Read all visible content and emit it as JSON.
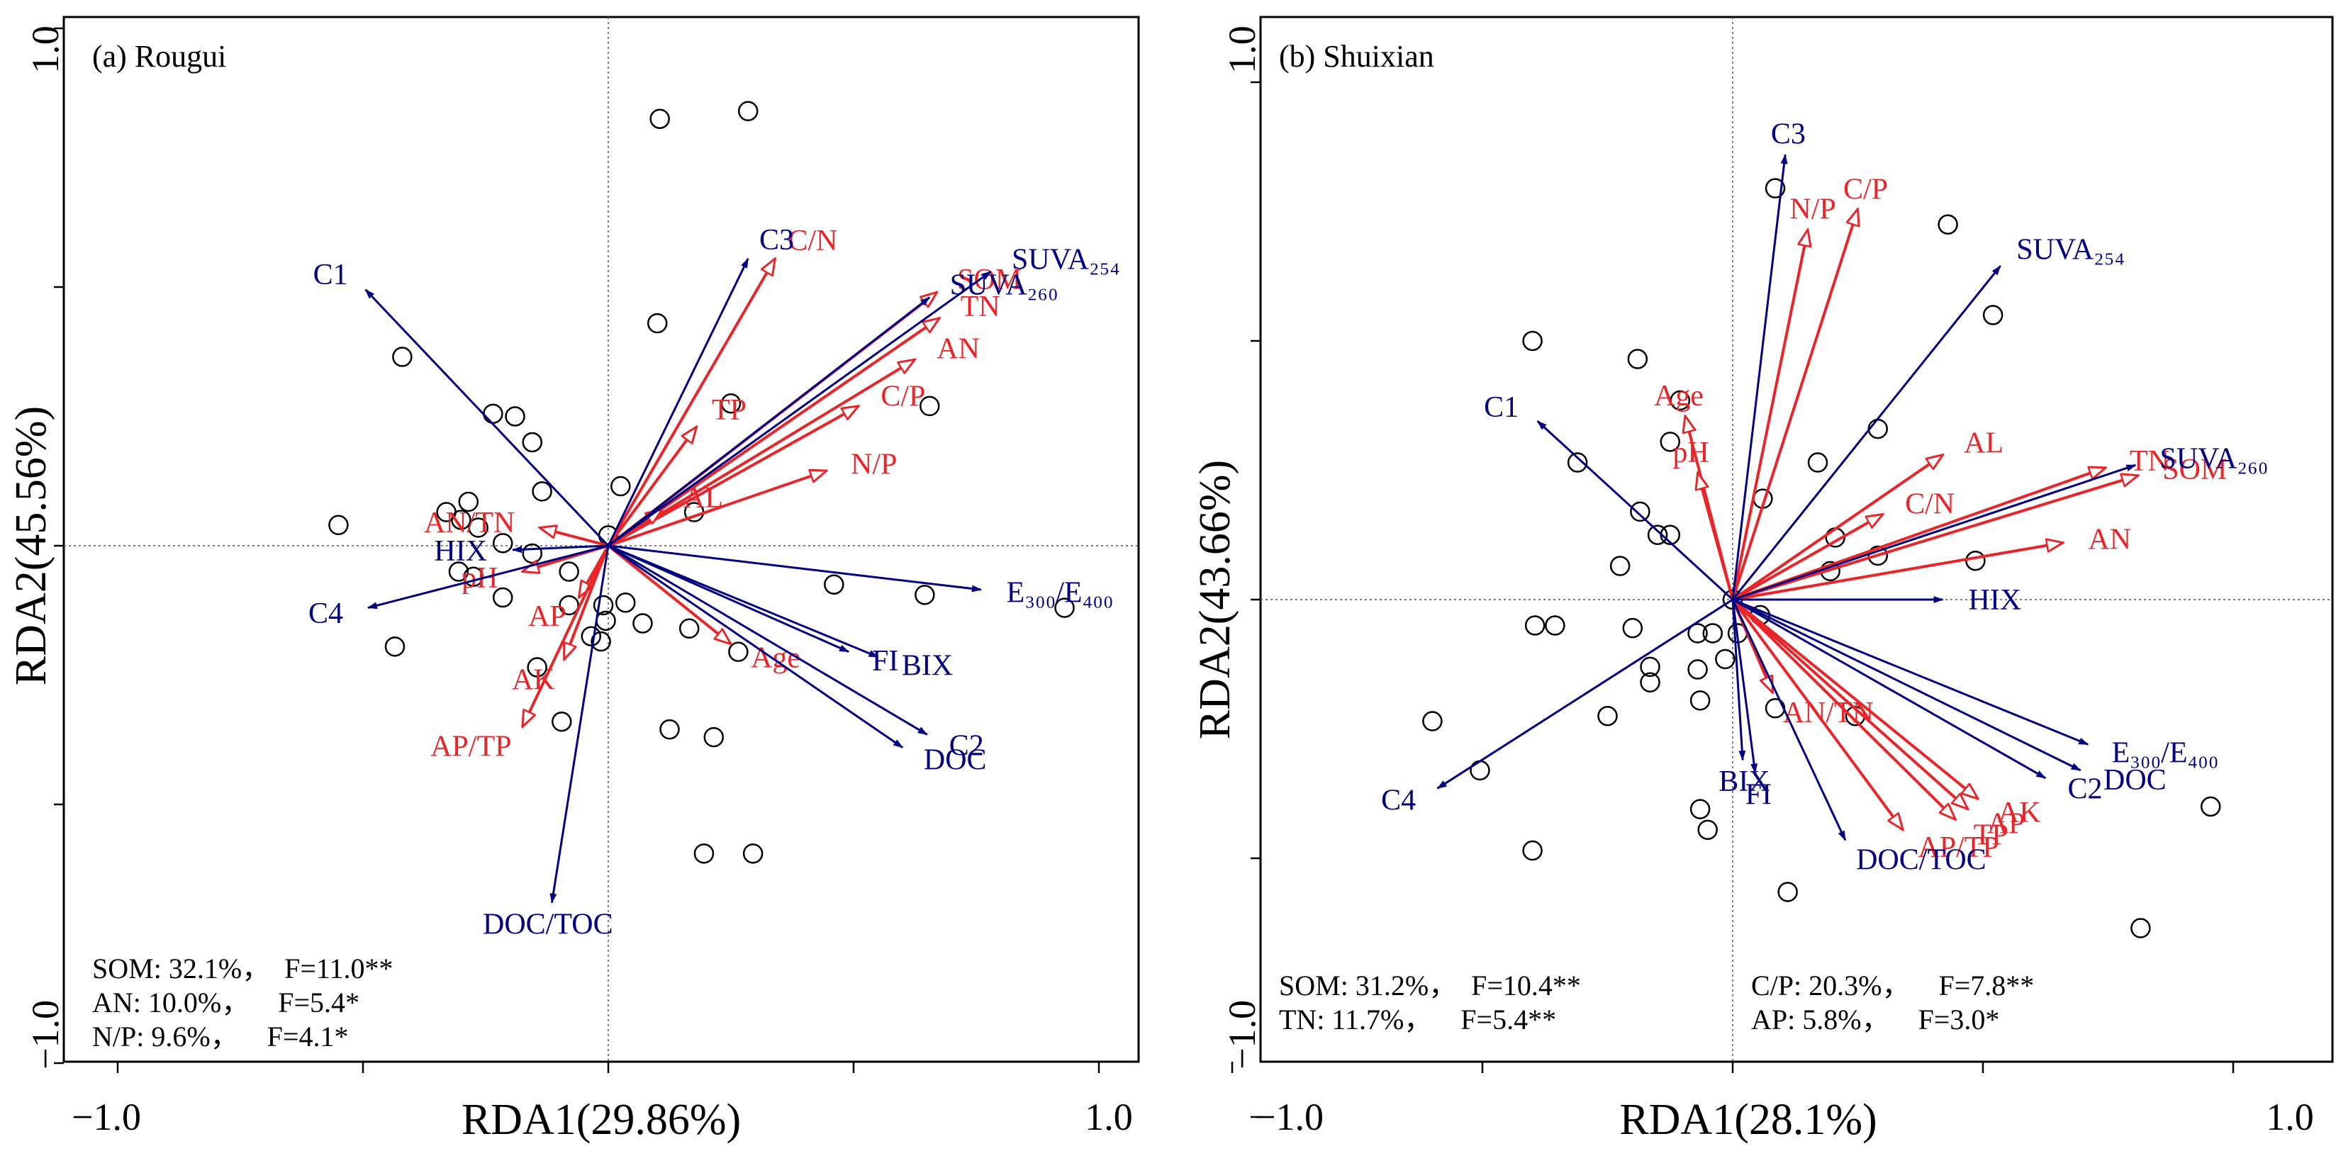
{
  "chart_data": [
    {
      "type": "scatter",
      "panel": "(a) Rougui",
      "xlabel": "RDA1(29.86%)",
      "ylabel": "RDA2(45.56%)",
      "xlim": [
        -1.0,
        1.0
      ],
      "ylim": [
        -1.0,
        1.0
      ],
      "xtick_labels": [
        "−1.0",
        "1.0"
      ],
      "ytick_labels": [
        "−1.0",
        "1.0"
      ],
      "grid": false,
      "colors": {
        "response": "#000080",
        "explanatory": "#e8262a",
        "sites": "#000000"
      },
      "response_vectors": [
        {
          "label": "C1",
          "x": -0.495,
          "y": 0.495
        },
        {
          "label": "C3",
          "x": 0.285,
          "y": 0.555
        },
        {
          "label": "SUVA260",
          "display": "SUVA₂₆₀",
          "x": 0.655,
          "y": 0.48
        },
        {
          "label": "SUVA254",
          "display": "SUVA₂₅₄",
          "x": 0.78,
          "y": 0.53
        },
        {
          "label": "HIX",
          "x": -0.195,
          "y": -0.008
        },
        {
          "label": "C4",
          "x": -0.49,
          "y": -0.12
        },
        {
          "label": "E300/E400",
          "display": "E₃₀₀/E₄₀₀",
          "x": 0.76,
          "y": -0.085
        },
        {
          "label": "BIX",
          "x": 0.55,
          "y": -0.215
        },
        {
          "label": "FI",
          "x": 0.49,
          "y": -0.205
        },
        {
          "label": "C2",
          "x": 0.65,
          "y": -0.365
        },
        {
          "label": "DOC",
          "x": 0.6,
          "y": -0.39
        },
        {
          "label": "DOC/TOC",
          "x": -0.115,
          "y": -0.69
        }
      ],
      "explanatory_vectors": [
        {
          "label": "C/N",
          "x": 0.34,
          "y": 0.555
        },
        {
          "label": "SOM",
          "x": 0.67,
          "y": 0.49
        },
        {
          "label": "TN",
          "x": 0.675,
          "y": 0.44
        },
        {
          "label": "AN",
          "x": 0.625,
          "y": 0.36
        },
        {
          "label": "C/P",
          "x": 0.51,
          "y": 0.27
        },
        {
          "label": "TP",
          "x": 0.18,
          "y": 0.23
        },
        {
          "label": "N/P",
          "x": 0.445,
          "y": 0.145
        },
        {
          "label": "AL",
          "x": 0.11,
          "y": 0.07
        },
        {
          "label": "AN/TN",
          "x": -0.14,
          "y": 0.035
        },
        {
          "label": "pH",
          "x": -0.175,
          "y": -0.05
        },
        {
          "label": "AP",
          "x": -0.06,
          "y": -0.1
        },
        {
          "label": "AK",
          "x": -0.09,
          "y": -0.22
        },
        {
          "label": "AP/TP",
          "x": -0.175,
          "y": -0.35
        },
        {
          "label": "Age",
          "x": 0.25,
          "y": -0.19
        }
      ],
      "sites": [
        [
          0.105,
          0.825
        ],
        [
          0.285,
          0.84
        ],
        [
          0.1,
          0.43
        ],
        [
          0.25,
          0.275
        ],
        [
          0.655,
          0.27
        ],
        [
          -0.42,
          0.365
        ],
        [
          -0.19,
          0.25
        ],
        [
          -0.235,
          0.255
        ],
        [
          -0.155,
          0.2
        ],
        [
          -0.135,
          0.105
        ],
        [
          0.025,
          0.115
        ],
        [
          -0.285,
          0.085
        ],
        [
          -0.33,
          0.065
        ],
        [
          -0.55,
          0.04
        ],
        [
          -0.3,
          0.05
        ],
        [
          -0.265,
          0.035
        ],
        [
          0.175,
          0.065
        ],
        [
          0.0,
          0.02
        ],
        [
          -0.215,
          0.005
        ],
        [
          -0.155,
          -0.015
        ],
        [
          -0.305,
          -0.05
        ],
        [
          -0.275,
          -0.06
        ],
        [
          -0.08,
          -0.05
        ],
        [
          0.035,
          -0.11
        ],
        [
          -0.08,
          -0.115
        ],
        [
          -0.01,
          -0.115
        ],
        [
          -0.215,
          -0.1
        ],
        [
          -0.005,
          -0.145
        ],
        [
          -0.015,
          -0.185
        ],
        [
          0.07,
          -0.15
        ],
        [
          -0.035,
          -0.175
        ],
        [
          0.265,
          -0.205
        ],
        [
          -0.145,
          -0.235
        ],
        [
          -0.435,
          -0.195
        ],
        [
          0.46,
          -0.075
        ],
        [
          0.645,
          -0.095
        ],
        [
          0.93,
          -0.12
        ],
        [
          0.165,
          -0.16
        ],
        [
          -0.095,
          -0.34
        ],
        [
          0.125,
          -0.355
        ],
        [
          0.215,
          -0.37
        ],
        [
          0.195,
          -0.595
        ],
        [
          0.295,
          -0.595
        ]
      ],
      "stats": [
        {
          "text": "SOM: 32.1%，  F=11.0**"
        },
        {
          "text": "AN: 10.0%，    F=5.4*"
        },
        {
          "text": "N/P: 9.6%，    F=4.1*"
        }
      ]
    },
    {
      "type": "scatter",
      "panel": "(b) Shuixian",
      "xlabel": "RDA1(28.1%)",
      "ylabel": "RDA2(43.66%)",
      "xlim": [
        -1.0,
        1.0
      ],
      "ylim": [
        -1.0,
        1.0
      ],
      "xtick_labels": [
        "−1.0",
        "1.0"
      ],
      "ytick_labels": [
        "−1.0",
        "1.0"
      ],
      "grid": false,
      "colors": {
        "response": "#000080",
        "explanatory": "#e8262a",
        "sites": "#000000"
      },
      "response_vectors": [
        {
          "label": "C3",
          "x": 0.105,
          "y": 0.86
        },
        {
          "label": "SUVA254",
          "display": "SUVA₂₅₄",
          "x": 0.535,
          "y": 0.645
        },
        {
          "label": "C1",
          "x": -0.39,
          "y": 0.345
        },
        {
          "label": "SUVA260",
          "display": "SUVA₂₆₀",
          "x": 0.805,
          "y": 0.26
        },
        {
          "label": "HIX",
          "x": 0.42,
          "y": 0.0
        },
        {
          "label": "E300/E400",
          "display": "E₃₀₀/E₄₀₀",
          "x": 0.71,
          "y": -0.28
        },
        {
          "label": "DOC",
          "x": 0.695,
          "y": -0.33
        },
        {
          "label": "C2",
          "x": 0.625,
          "y": -0.345
        },
        {
          "label": "C4",
          "x": -0.59,
          "y": -0.365
        },
        {
          "label": "BIX",
          "x": 0.02,
          "y": -0.31
        },
        {
          "label": "FI",
          "x": 0.045,
          "y": -0.335
        },
        {
          "label": "DOC/TOC",
          "x": 0.225,
          "y": -0.465
        }
      ],
      "explanatory_vectors": [
        {
          "label": "C/P",
          "x": 0.25,
          "y": 0.755
        },
        {
          "label": "N/P",
          "x": 0.15,
          "y": 0.715
        },
        {
          "label": "Age",
          "x": -0.095,
          "y": 0.355
        },
        {
          "label": "pH",
          "x": -0.07,
          "y": 0.245
        },
        {
          "label": "AL",
          "x": 0.42,
          "y": 0.28
        },
        {
          "label": "TN",
          "x": 0.745,
          "y": 0.255
        },
        {
          "label": "SOM",
          "x": 0.81,
          "y": 0.24
        },
        {
          "label": "C/N",
          "x": 0.3,
          "y": 0.165
        },
        {
          "label": "AN",
          "x": 0.66,
          "y": 0.11
        },
        {
          "label": "AN/TN",
          "x": 0.08,
          "y": -0.18
        },
        {
          "label": "AK",
          "x": 0.49,
          "y": -0.385
        },
        {
          "label": "AP",
          "x": 0.47,
          "y": -0.405
        },
        {
          "label": "TP",
          "x": 0.445,
          "y": -0.425
        },
        {
          "label": "AP/TP",
          "x": 0.34,
          "y": -0.445
        }
      ],
      "sites": [
        [
          0.085,
          0.795
        ],
        [
          0.43,
          0.725
        ],
        [
          0.52,
          0.55
        ],
        [
          -0.4,
          0.5
        ],
        [
          -0.19,
          0.465
        ],
        [
          -0.105,
          0.385
        ],
        [
          0.29,
          0.33
        ],
        [
          -0.125,
          0.305
        ],
        [
          0.17,
          0.265
        ],
        [
          -0.31,
          0.265
        ],
        [
          0.06,
          0.195
        ],
        [
          -0.185,
          0.17
        ],
        [
          -0.125,
          0.125
        ],
        [
          0.205,
          0.12
        ],
        [
          -0.15,
          0.125
        ],
        [
          0.29,
          0.085
        ],
        [
          0.195,
          0.055
        ],
        [
          0.485,
          0.075
        ],
        [
          -0.225,
          0.065
        ],
        [
          -0.0,
          0.0
        ],
        [
          0.055,
          -0.03
        ],
        [
          0.01,
          -0.065
        ],
        [
          -0.395,
          -0.05
        ],
        [
          -0.355,
          -0.05
        ],
        [
          -0.2,
          -0.055
        ],
        [
          -0.07,
          -0.065
        ],
        [
          -0.04,
          -0.065
        ],
        [
          -0.015,
          -0.115
        ],
        [
          -0.165,
          -0.13
        ],
        [
          -0.07,
          -0.135
        ],
        [
          -0.165,
          -0.16
        ],
        [
          -0.065,
          -0.195
        ],
        [
          0.085,
          -0.21
        ],
        [
          0.245,
          -0.225
        ],
        [
          -0.25,
          -0.225
        ],
        [
          -0.6,
          -0.235
        ],
        [
          -0.505,
          -0.33
        ],
        [
          -0.065,
          -0.405
        ],
        [
          -0.05,
          -0.445
        ],
        [
          -0.4,
          -0.485
        ],
        [
          0.11,
          -0.565
        ],
        [
          0.815,
          -0.635
        ],
        [
          0.955,
          -0.4
        ]
      ],
      "stats": [
        {
          "text": "SOM: 31.2%，  F=10.4**"
        },
        {
          "text": "TN: 11.7%，    F=5.4**"
        },
        {
          "text": "C/P: 20.3%，    F=7.8**"
        },
        {
          "text": "AP: 5.8%，    F=3.0*"
        }
      ]
    }
  ]
}
